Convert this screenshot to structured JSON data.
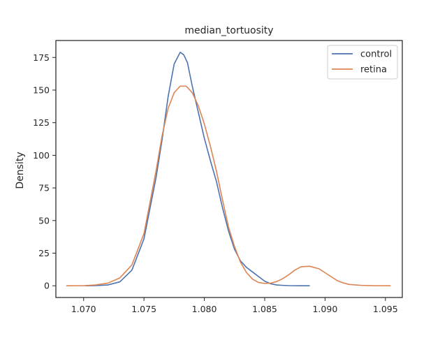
{
  "chart_data": {
    "type": "line",
    "title": "median_tortuosity",
    "xlabel": "",
    "ylabel": "Density",
    "xlim": [
      1.0677,
      1.0964
    ],
    "ylim": [
      -9,
      188
    ],
    "xticks": [
      1.07,
      1.075,
      1.08,
      1.085,
      1.09,
      1.095
    ],
    "xtick_labels": [
      "1.070",
      "1.075",
      "1.080",
      "1.085",
      "1.090",
      "1.095"
    ],
    "yticks": [
      0,
      25,
      50,
      75,
      100,
      125,
      150,
      175
    ],
    "ytick_labels": [
      "0",
      "25",
      "50",
      "75",
      "100",
      "125",
      "150",
      "175"
    ],
    "grid": false,
    "legend": "top-right",
    "series": [
      {
        "name": "control",
        "color": "#4c72b0",
        "x": [
          1.0702,
          1.071,
          1.072,
          1.073,
          1.074,
          1.075,
          1.076,
          1.0765,
          1.077,
          1.0775,
          1.078,
          1.0783,
          1.0786,
          1.079,
          1.0795,
          1.08,
          1.0805,
          1.081,
          1.0815,
          1.082,
          1.0825,
          1.083,
          1.0835,
          1.084,
          1.0845,
          1.085,
          1.0855,
          1.086,
          1.0865,
          1.087,
          1.088,
          1.0887
        ],
        "y": [
          0,
          0.1,
          0.6,
          3,
          12,
          36,
          83,
          112,
          145,
          170,
          179,
          177,
          171,
          153,
          133,
          113,
          96,
          80,
          60,
          42,
          28,
          19,
          14,
          10.5,
          7,
          3.5,
          1.5,
          0.6,
          0.3,
          0.1,
          0,
          0
        ]
      },
      {
        "name": "retina",
        "color": "#dd8452",
        "x": [
          1.0686,
          1.07,
          1.071,
          1.072,
          1.073,
          1.074,
          1.075,
          1.076,
          1.0765,
          1.077,
          1.0775,
          1.078,
          1.0785,
          1.079,
          1.0795,
          1.08,
          1.0805,
          1.081,
          1.0815,
          1.082,
          1.0825,
          1.083,
          1.0835,
          1.084,
          1.0845,
          1.085,
          1.0855,
          1.086,
          1.0865,
          1.087,
          1.0875,
          1.088,
          1.0887,
          1.0895,
          1.09,
          1.0905,
          1.091,
          1.0915,
          1.092,
          1.093,
          1.094,
          1.0954
        ],
        "y": [
          0,
          0.05,
          0.6,
          2,
          6,
          16,
          40,
          88,
          115,
          136,
          148,
          153,
          153,
          148,
          138,
          124,
          107,
          88,
          66,
          45,
          30,
          18,
          10,
          5,
          2.5,
          1.8,
          2,
          3.2,
          5.5,
          8.5,
          12,
          14.5,
          15,
          13,
          10,
          7,
          4,
          2.2,
          1,
          0.3,
          0.05,
          0
        ]
      }
    ]
  }
}
